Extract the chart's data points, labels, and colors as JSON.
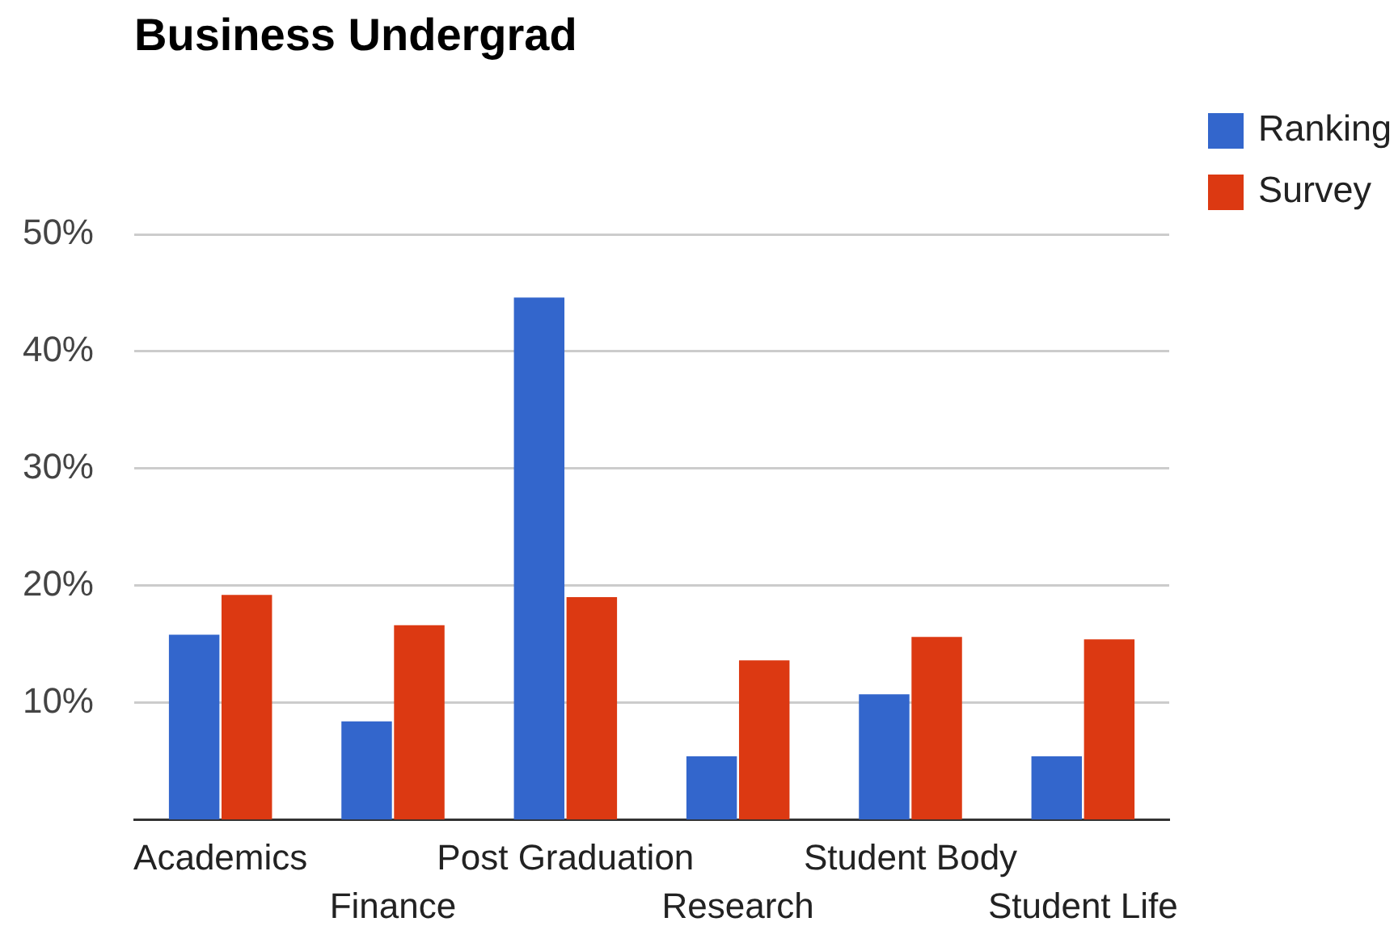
{
  "chart_data": {
    "type": "bar",
    "title": "Business Undergrad",
    "categories": [
      "Academics",
      "Finance",
      "Post Graduation",
      "Research",
      "Student Body",
      "Student Life"
    ],
    "series": [
      {
        "name": "Ranking",
        "color": "#3366cc",
        "values": [
          15.8,
          8.4,
          44.6,
          5.4,
          10.7,
          5.4
        ]
      },
      {
        "name": "Survey",
        "color": "#dc3912",
        "values": [
          19.2,
          16.6,
          19.0,
          13.6,
          15.6,
          15.4
        ]
      }
    ],
    "ylim": [
      0,
      50
    ],
    "yticks": [
      {
        "value": 10,
        "label": "10%"
      },
      {
        "value": 20,
        "label": "20%"
      },
      {
        "value": 30,
        "label": "30%"
      },
      {
        "value": 40,
        "label": "40%"
      },
      {
        "value": 50,
        "label": "50%"
      }
    ],
    "grid": "y",
    "legend": "top right"
  }
}
